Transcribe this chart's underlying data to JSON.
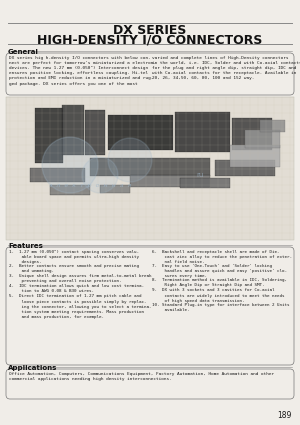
{
  "title_line1": "DX SERIES",
  "title_line2": "HIGH-DENSITY I/O CONNECTORS",
  "page_bg": "#f0ede8",
  "section_general_title": "General",
  "general_text_left": "DX series hig h-density I/O connectors with below con-\nnect are perfect for tomorrow's miniaturized a electron-\ndevices. The new 1.27 mm (0.050\") Interconnect design\nensures positive locking, effortless coupling. Hi-tel\nprotection and EMI reduction in a miniaturized and rug-\nged package. DX series offers you one of the most",
  "general_text_right": "varied and complete lines of High-Density connectors\nin the world, i.e. IDC, Solder and with Co-axial contacts\nfor the plug and right angle dip, straight dip, IDC and\nwith Co-axial contacts for the receptacle. Available in\n20, 26, 34,50, 60, 80, 100 and 152 way.",
  "section_features_title": "Features",
  "feat_left": [
    "1.  1.27 mm (0.050\") contact spacing conserves valu-\n     able board space and permits ultra-high density\n     designs.",
    "2.  Better contacts ensure smooth and precise mating\n     and unmating.",
    "3.  Unique shell design assures firm metal-to-metal break\n     preventing and overall noise protection.",
    "4.  IDC termination allows quick and low cost termina-\n     tion to AWG 0.08 & B30 wires.",
    "5.  Direct IDC termination of 1.27 mm pitch cable and\n     loose piece contacts is possible simply by replac-\n     ing the connector, allowing you to select a termina-\n     tion system meeting requirements. Mass production\n     and mass production, for example."
  ],
  "feat_right": [
    "6.  Backshell and receptacle shell are made of Die-\n     cast zinc alloy to reduce the penetration of exter-\n     nal field noise.",
    "7.  Easy to use 'One-Touch' and 'Solder' locking\n     handles and assure quick and easy 'positive' clo-\n     sures every time.",
    "8.  Termination method is available in IDC, Soldering,\n     Right Angle Dip or Straight Dip and SMT.",
    "9.  DX with 3 sockets and 3 cavities for Co-axial\n     contacts are widely introduced to meet the needs\n     of high speed data transmission.",
    "10. Standard Plug-in type for interface between 2 Units\n     available."
  ],
  "section_applications_title": "Applications",
  "applications_text": "Office Automation, Computers, Communications Equipment, Factory Automation, Home Automation and other\ncommercial applications needing high density interconnections.",
  "page_number": "189",
  "title_color": "#111111",
  "section_title_color": "#111111",
  "box_border_color": "#777777",
  "text_color": "#1a1a1a",
  "line_color": "#888888",
  "img_bg": "#ddd8cc",
  "watermark_color": "#a0b8cc"
}
